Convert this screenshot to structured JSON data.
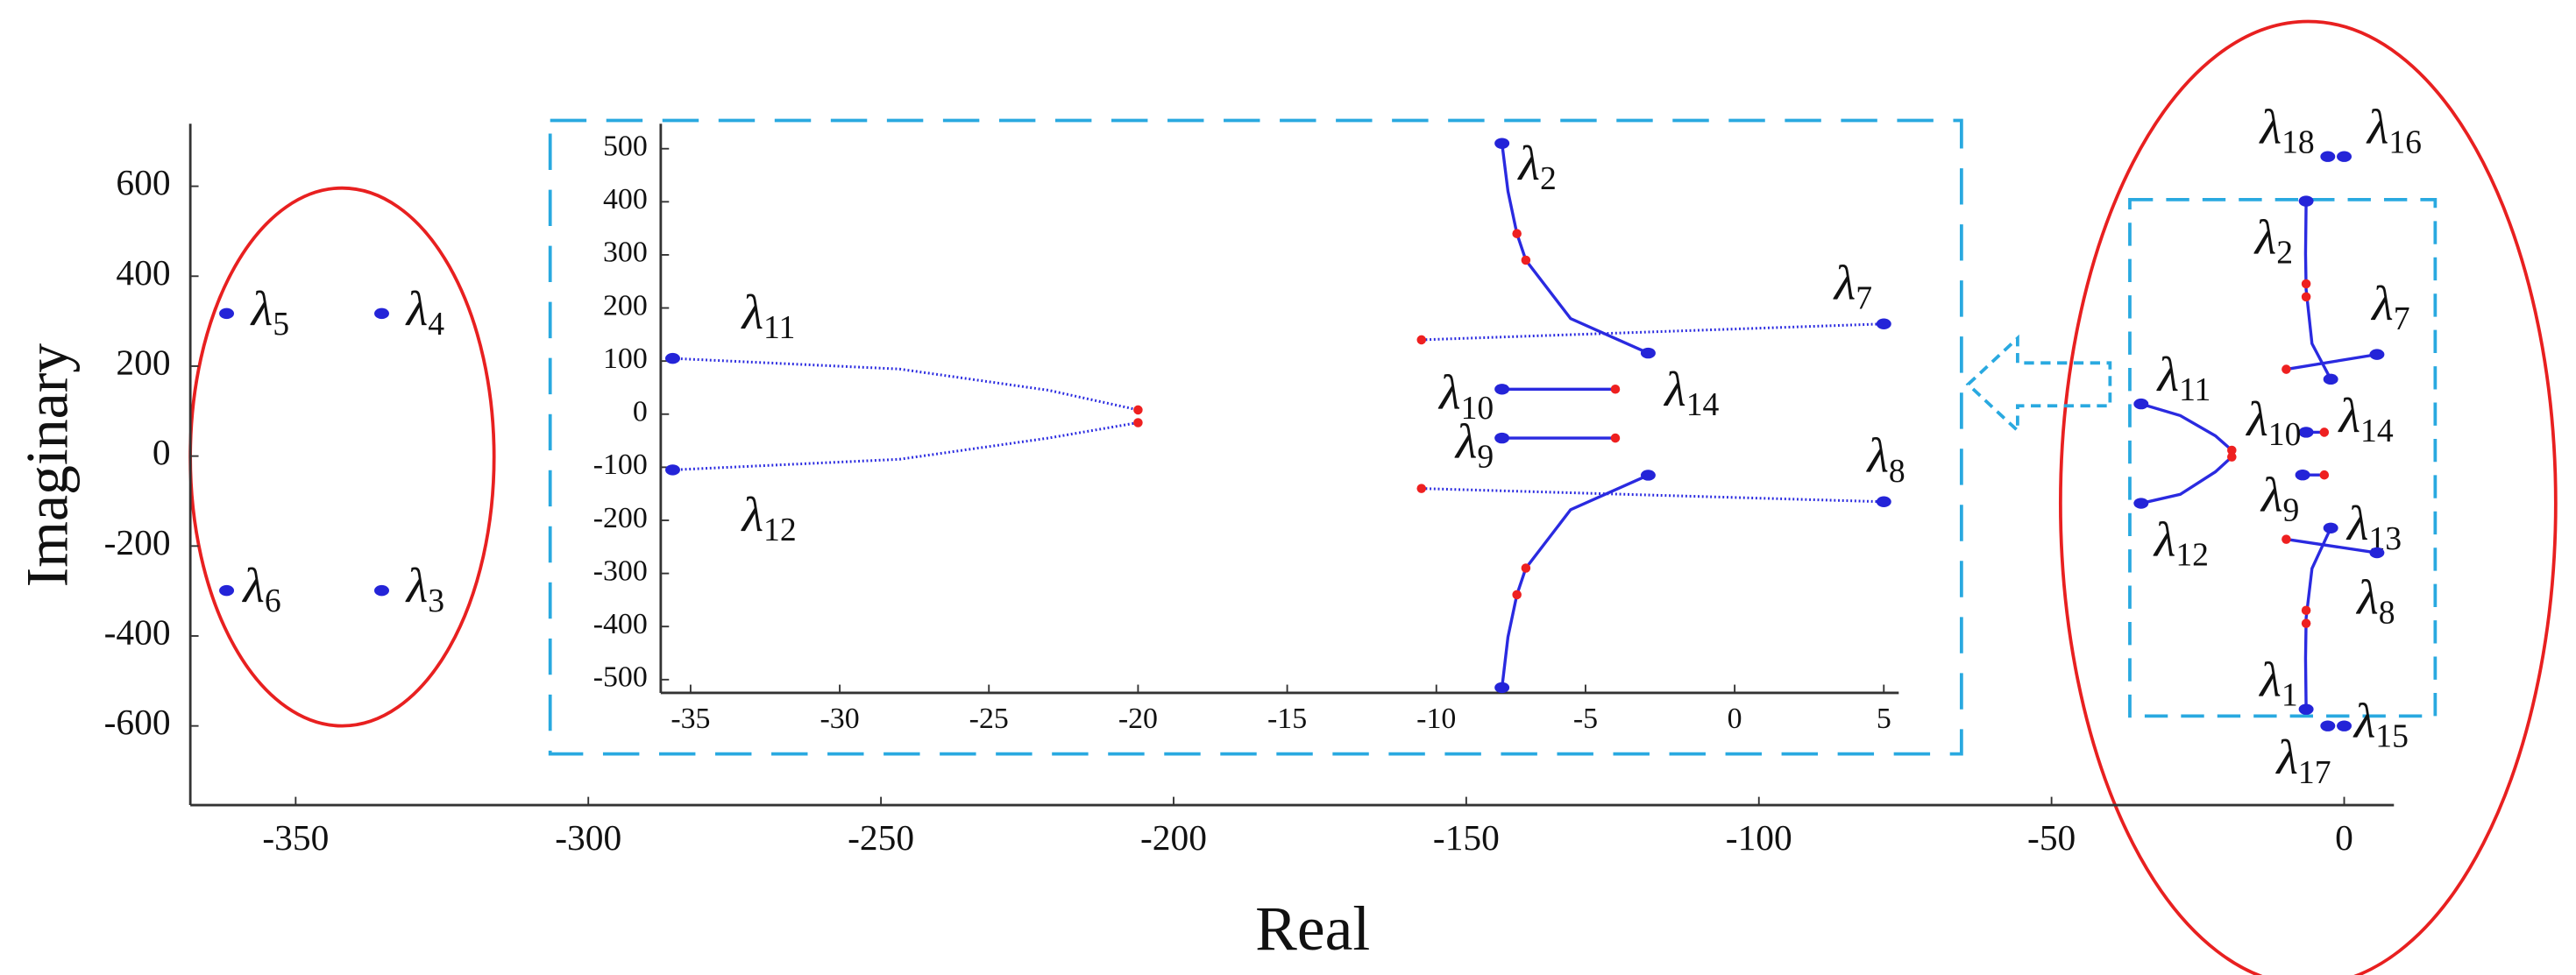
{
  "chart_data": [
    {
      "type": "scatter",
      "xlabel": "Real",
      "ylabel": "Imaginary",
      "xlim": [
        -368,
        8.5
      ],
      "ylim": [
        -776,
        739
      ],
      "xticks": [
        -350,
        -300,
        -250,
        -200,
        -150,
        -100,
        -50,
        0
      ],
      "yticks": [
        -600,
        -400,
        -200,
        0,
        200,
        400,
        600
      ],
      "point_groups": [
        {
          "color": "#2424d8",
          "points": [
            {
              "label": "λ18",
              "x": -2.8,
              "y": 666
            },
            {
              "label": "λ16",
              "x": 0,
              "y": 666
            },
            {
              "label": "λ2",
              "x": -6.5,
              "y": 567
            },
            {
              "label": "λ14",
              "x": -2.3,
              "y": 171
            },
            {
              "label": "λ7",
              "x": 5.6,
              "y": 226
            },
            {
              "label": "λ11",
              "x": -34.7,
              "y": 116
            },
            {
              "label": "λ12",
              "x": -34.7,
              "y": -105
            },
            {
              "label": "λ10",
              "x": -6.5,
              "y": 53
            },
            {
              "label": "λ9",
              "x": -7.1,
              "y": -42
            },
            {
              "label": "λ13",
              "x": -2.3,
              "y": -160
            },
            {
              "label": "λ8",
              "x": 5.6,
              "y": -215
            },
            {
              "label": "λ1",
              "x": -6.5,
              "y": -563
            },
            {
              "label": "λ17",
              "x": -2.8,
              "y": -600
            },
            {
              "label": "λ15",
              "x": 0,
              "y": -600
            },
            {
              "label": "λ5",
              "x": -361.8,
              "y": 317
            },
            {
              "label": "λ4",
              "x": -335.3,
              "y": 317
            },
            {
              "label": "λ6",
              "x": -361.8,
              "y": -299
            },
            {
              "label": "λ3",
              "x": -335.3,
              "y": -299
            }
          ]
        },
        {
          "color": "#ee2020",
          "points": [
            {
              "x": -19.2,
              "y": 13
            },
            {
              "x": -19.2,
              "y": -2
            },
            {
              "x": -6.5,
              "y": 383
            },
            {
              "x": -6.5,
              "y": 354
            },
            {
              "x": -9.9,
              "y": 193
            },
            {
              "x": -3.4,
              "y": 53
            },
            {
              "x": -3.4,
              "y": -42
            },
            {
              "x": -9.9,
              "y": -185
            },
            {
              "x": -6.5,
              "y": -343
            },
            {
              "x": -6.5,
              "y": -372
            }
          ]
        }
      ],
      "curve_color": "#2a2ae0",
      "curves": [
        {
          "style": "solid",
          "x": [
            -6.5,
            -6.6,
            -6.5,
            -5.5,
            -2.3
          ],
          "y": [
            567,
            450,
            370,
            250,
            171
          ]
        },
        {
          "style": "solid",
          "x": [
            -9.9,
            5.6
          ],
          "y": [
            193,
            226
          ]
        },
        {
          "style": "solid",
          "x": [
            -34.7,
            -28,
            -22,
            -19.2
          ],
          "y": [
            116,
            90,
            45,
            13
          ]
        },
        {
          "style": "solid",
          "x": [
            -34.7,
            -28,
            -22,
            -19.2
          ],
          "y": [
            -105,
            -85,
            -35,
            -2
          ]
        },
        {
          "style": "solid",
          "x": [
            -6.5,
            -3.4
          ],
          "y": [
            53,
            53
          ]
        },
        {
          "style": "solid",
          "x": [
            -7.1,
            -3.4
          ],
          "y": [
            -42,
            -42
          ]
        },
        {
          "style": "solid",
          "x": [
            -9.9,
            5.6
          ],
          "y": [
            -185,
            -215
          ]
        },
        {
          "style": "solid",
          "x": [
            -2.3,
            -5.5,
            -6.5,
            -6.6,
            -6.5
          ],
          "y": [
            -160,
            -250,
            -360,
            -450,
            -563
          ]
        }
      ]
    },
    {
      "type": "scatter",
      "xlim": [
        -36,
        5.5
      ],
      "ylim": [
        -525,
        547
      ],
      "xticks": [
        -35,
        -30,
        -25,
        -20,
        -15,
        -10,
        -5,
        0,
        5
      ],
      "yticks": [
        -500,
        -400,
        -300,
        -200,
        -100,
        0,
        100,
        200,
        300,
        400,
        500
      ],
      "point_groups": [
        {
          "color": "#2424d8",
          "points": [
            {
              "label": "λ2",
              "x": -7.8,
              "y": 510
            },
            {
              "label": "λ14",
              "x": -2.9,
              "y": 115
            },
            {
              "label": "λ7",
              "x": 5,
              "y": 170
            },
            {
              "label": "λ11",
              "x": -35.6,
              "y": 105
            },
            {
              "label": "λ12",
              "x": -35.6,
              "y": -105
            },
            {
              "label": "λ10",
              "x": -7.8,
              "y": 47
            },
            {
              "label": "λ9",
              "x": -7.8,
              "y": -45
            },
            {
              "label": "λ8",
              "x": 5,
              "y": -165
            },
            {
              "x": -2.9,
              "y": -115
            },
            {
              "x": -7.8,
              "y": -515
            }
          ]
        },
        {
          "color": "#ee2020",
          "points": [
            {
              "x": -20,
              "y": 8
            },
            {
              "x": -20,
              "y": -16
            },
            {
              "x": -7.3,
              "y": 340
            },
            {
              "x": -7,
              "y": 290
            },
            {
              "x": -10.5,
              "y": 140
            },
            {
              "x": -4,
              "y": 47
            },
            {
              "x": -4,
              "y": -45
            },
            {
              "x": -10.5,
              "y": -140
            },
            {
              "x": -7,
              "y": -290
            },
            {
              "x": -7.3,
              "y": -340
            }
          ]
        }
      ],
      "curve_color": "#2a2ae0",
      "curves": [
        {
          "style": "solid",
          "x": [
            -7.8,
            -7.6,
            -7.3,
            -7,
            -5.5,
            -2.9
          ],
          "y": [
            510,
            420,
            340,
            290,
            180,
            115
          ]
        },
        {
          "style": "dotted",
          "x": [
            -10.5,
            5
          ],
          "y": [
            140,
            170
          ]
        },
        {
          "style": "dotted",
          "x": [
            -35.6,
            -28,
            -23,
            -20
          ],
          "y": [
            105,
            85,
            45,
            8
          ]
        },
        {
          "style": "dotted",
          "x": [
            -35.6,
            -28,
            -23,
            -20
          ],
          "y": [
            -105,
            -85,
            -45,
            -16
          ]
        },
        {
          "style": "solid",
          "x": [
            -7.8,
            -4
          ],
          "y": [
            47,
            47
          ]
        },
        {
          "style": "solid",
          "x": [
            -7.8,
            -4
          ],
          "y": [
            -45,
            -45
          ]
        },
        {
          "style": "dotted",
          "x": [
            -10.5,
            5
          ],
          "y": [
            -140,
            -165
          ]
        },
        {
          "style": "solid",
          "x": [
            -2.9,
            -5.5,
            -7,
            -7.3,
            -7.6,
            -7.8
          ],
          "y": [
            -115,
            -180,
            -290,
            -340,
            -420,
            -515
          ]
        }
      ]
    }
  ]
}
